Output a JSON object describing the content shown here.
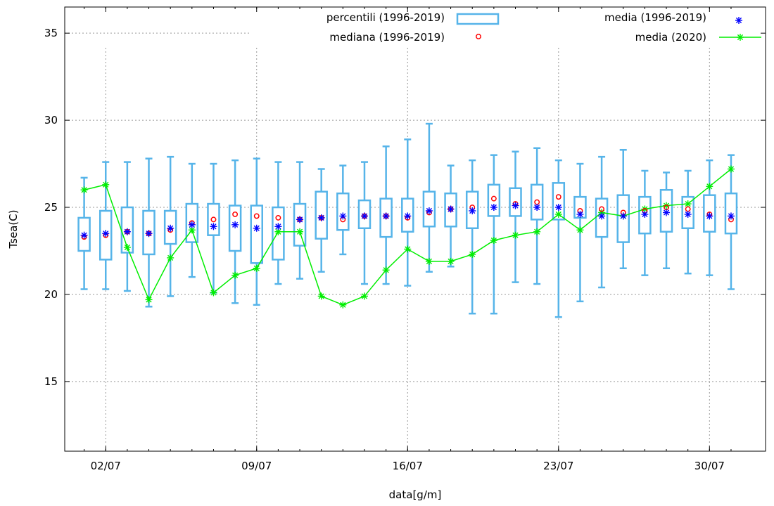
{
  "chart_data": {
    "type": "box",
    "xlabel": "data[g/m]",
    "ylabel": "Tsea(C)",
    "ylim": [
      11,
      36.5
    ],
    "yticks": [
      15,
      20,
      25,
      30,
      35
    ],
    "xlim": [
      0.1,
      32.6
    ],
    "xticks": [
      {
        "day": 2,
        "label": "02/07"
      },
      {
        "day": 9,
        "label": "09/07"
      },
      {
        "day": 16,
        "label": "16/07"
      },
      {
        "day": 23,
        "label": "23/07"
      },
      {
        "day": 30,
        "label": "30/07"
      }
    ],
    "grid": true,
    "legend": {
      "percentili": "percentili (1996-2019)",
      "mediana": "mediana (1996-2019)",
      "media": "media (1996-2019)",
      "media2020": "media (2020)"
    },
    "colors": {
      "box": "#56b4e9",
      "median": "#ff0000",
      "mean": "#0000ff",
      "mean2020": "#00ee00"
    },
    "days": [
      1,
      2,
      3,
      4,
      5,
      6,
      7,
      8,
      9,
      10,
      11,
      12,
      13,
      14,
      15,
      16,
      17,
      18,
      19,
      20,
      21,
      22,
      23,
      24,
      25,
      26,
      27,
      28,
      29,
      30,
      31
    ],
    "whisker_low": [
      20.3,
      20.3,
      20.2,
      19.3,
      19.9,
      21.0,
      20.1,
      19.5,
      19.4,
      20.6,
      20.9,
      21.3,
      22.3,
      20.6,
      20.6,
      20.5,
      21.3,
      21.6,
      18.9,
      18.9,
      20.7,
      20.6,
      18.7,
      19.6,
      20.4,
      21.5,
      21.1,
      21.5,
      21.2,
      21.1,
      20.3
    ],
    "q1": [
      22.5,
      22.0,
      22.4,
      22.3,
      22.9,
      23.0,
      23.4,
      22.5,
      21.8,
      22.0,
      22.8,
      23.2,
      23.7,
      23.8,
      23.3,
      23.6,
      23.9,
      23.9,
      23.8,
      24.5,
      24.5,
      24.3,
      24.3,
      24.4,
      23.3,
      23.0,
      23.5,
      23.6,
      23.8,
      23.6,
      23.5
    ],
    "q3": [
      24.4,
      24.8,
      25.0,
      24.8,
      24.8,
      25.2,
      25.2,
      25.1,
      25.1,
      25.0,
      25.2,
      25.9,
      25.8,
      25.4,
      25.5,
      25.5,
      25.9,
      25.8,
      25.9,
      26.3,
      26.1,
      26.3,
      26.4,
      25.6,
      25.5,
      25.7,
      25.6,
      26.0,
      25.6,
      25.7,
      25.8
    ],
    "whisker_high": [
      26.7,
      27.6,
      27.6,
      27.8,
      27.9,
      27.5,
      27.5,
      27.7,
      27.8,
      27.6,
      27.6,
      27.2,
      27.4,
      27.6,
      28.5,
      28.9,
      29.8,
      27.4,
      27.7,
      28.0,
      28.2,
      28.4,
      27.7,
      27.5,
      27.9,
      28.3,
      27.1,
      27.0,
      27.1,
      27.7,
      28.0
    ],
    "median": [
      23.3,
      23.4,
      23.6,
      23.5,
      23.7,
      24.1,
      24.3,
      24.6,
      24.5,
      24.4,
      24.3,
      24.4,
      24.3,
      24.5,
      24.5,
      24.4,
      24.7,
      24.9,
      25.0,
      25.5,
      25.2,
      25.3,
      25.6,
      24.8,
      24.9,
      24.7,
      24.8,
      25.0,
      24.9,
      24.6,
      24.3
    ],
    "mean": [
      23.4,
      23.5,
      23.6,
      23.5,
      23.8,
      24.0,
      23.9,
      24.0,
      23.8,
      23.9,
      24.3,
      24.4,
      24.5,
      24.5,
      24.5,
      24.5,
      24.8,
      24.9,
      24.8,
      25.0,
      25.1,
      25.0,
      25.0,
      24.6,
      24.5,
      24.5,
      24.6,
      24.7,
      24.6,
      24.5,
      24.5
    ],
    "mean_2020": [
      26.0,
      26.3,
      22.7,
      19.7,
      22.1,
      23.7,
      20.1,
      21.1,
      21.5,
      23.6,
      23.6,
      19.9,
      19.4,
      19.9,
      21.4,
      22.6,
      21.9,
      21.9,
      22.3,
      23.1,
      23.4,
      23.6,
      24.6,
      23.7,
      24.7,
      24.5,
      24.9,
      25.1,
      25.2,
      26.2,
      27.2
    ]
  }
}
